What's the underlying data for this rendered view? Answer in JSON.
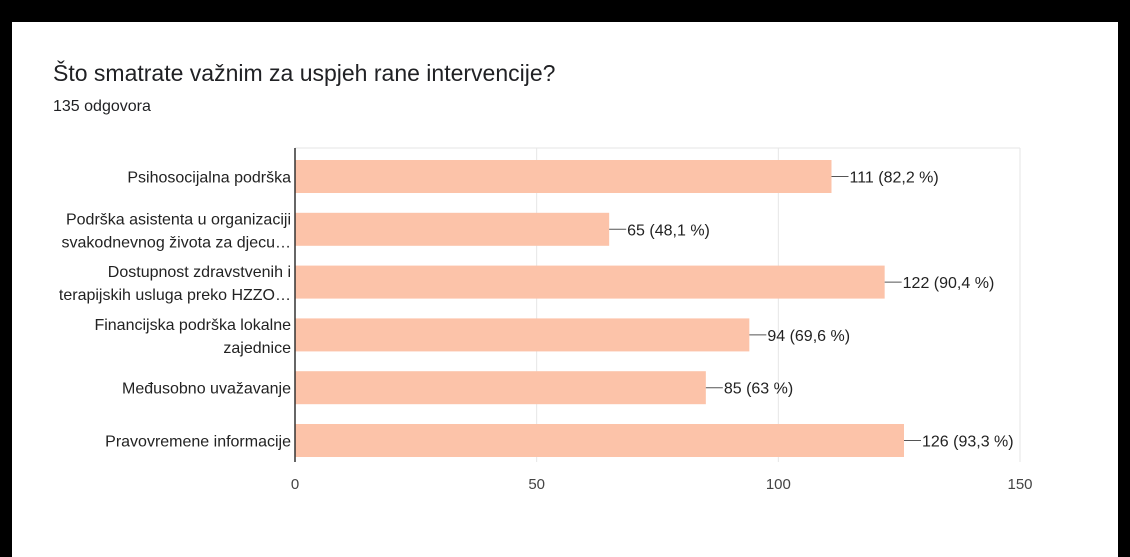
{
  "question": "Što smatrate važnim za uspjeh rane intervencije?",
  "responses": "135 odgovora",
  "colors": {
    "bar": "#fcc3a9",
    "grid": "#e6e6e6",
    "axis": "#333333"
  },
  "chart_data": {
    "type": "bar",
    "orientation": "horizontal",
    "title": "Što smatrate važnim za uspjeh rane intervencije?",
    "subtitle": "135 odgovora",
    "categories": [
      [
        "Psihosocijalna podrška"
      ],
      [
        "Podrška asistenta u organizaciji",
        "svakodnevnog života za djecu…"
      ],
      [
        "Dostupnost zdravstvenih i",
        "terapijskih usluga preko HZZO…"
      ],
      [
        "Financijska podrška lokalne",
        "zajednice"
      ],
      [
        "Međusobno uvažavanje"
      ],
      [
        "Pravovremene informacije"
      ]
    ],
    "values": [
      111,
      65,
      122,
      94,
      85,
      126
    ],
    "data_labels": [
      "111 (82,2 %)",
      "65 (48,1 %)",
      "122 (90,4 %)",
      "94 (69,6 %)",
      "85 (63 %)",
      "126 (93,3 %)"
    ],
    "xlim": [
      0,
      150
    ],
    "xticks": [
      0,
      50,
      100,
      150
    ],
    "grid": true
  }
}
